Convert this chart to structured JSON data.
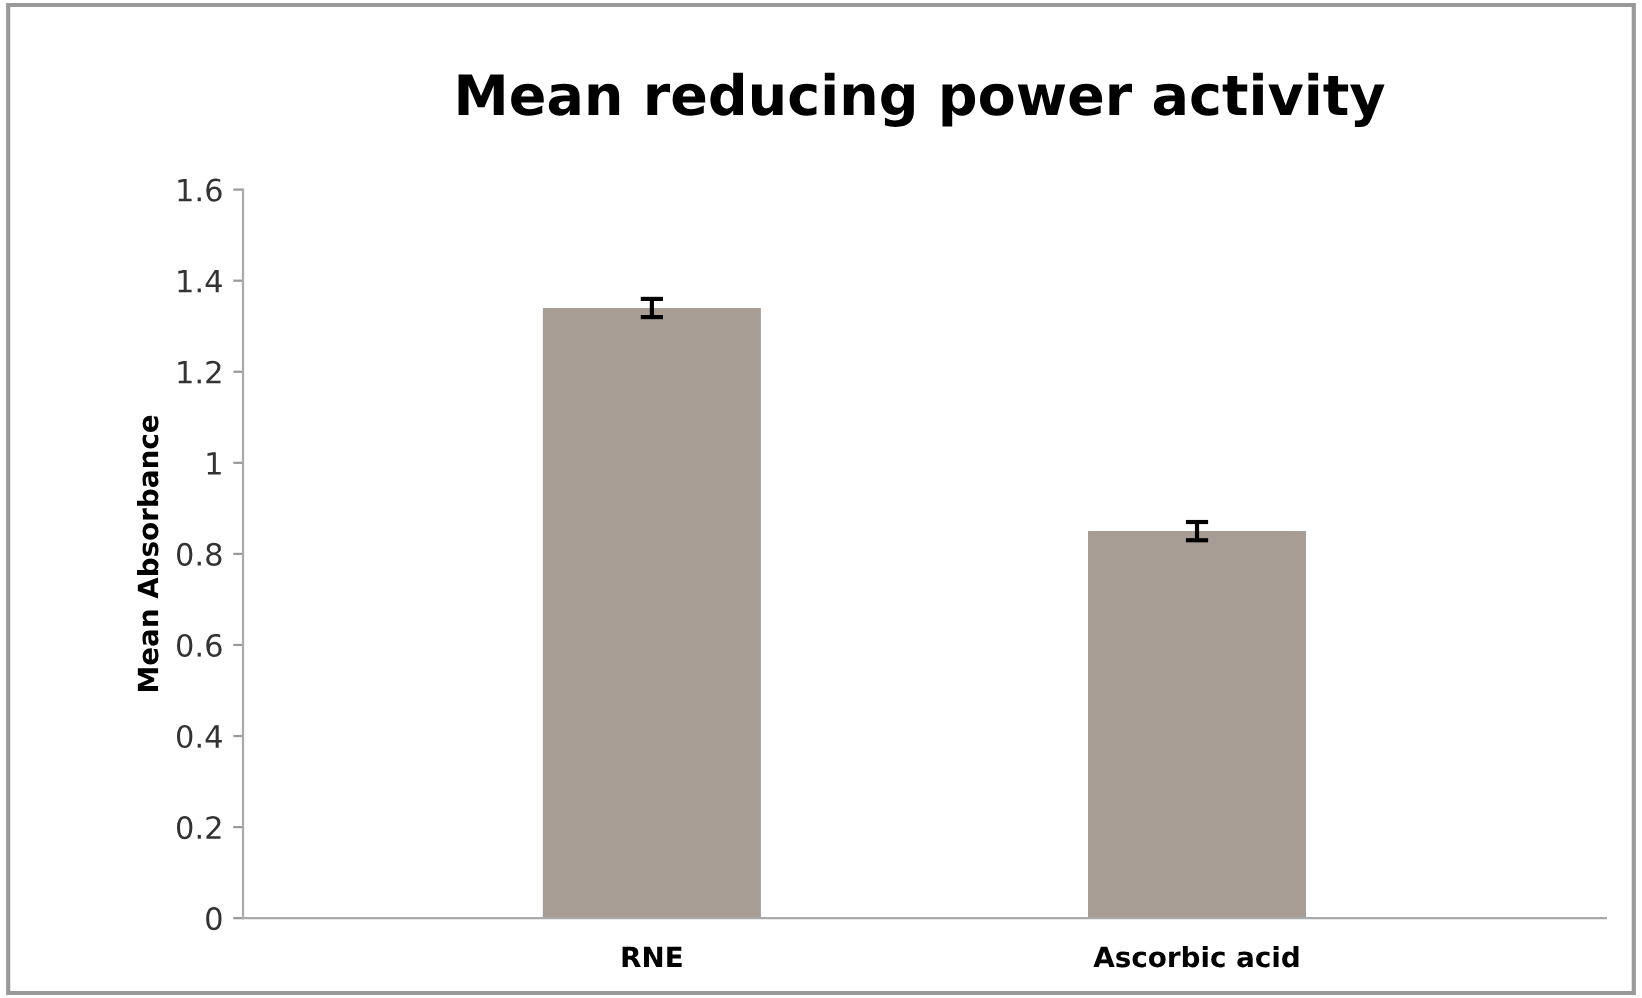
{
  "chart_data": {
    "type": "bar",
    "title": "Mean reducing power activity",
    "ylabel": "Mean Absorbance",
    "categories": [
      "RNE",
      "Ascorbic acid"
    ],
    "values": [
      1.34,
      0.85
    ],
    "errors": [
      0.02,
      0.02
    ],
    "color": "#a89d95",
    "ylim": [
      0,
      1.6
    ],
    "yticks": [
      0,
      0.2,
      0.4,
      0.6,
      0.8,
      1,
      1.2,
      1.4,
      1.6
    ],
    "grid": false,
    "legend": false
  }
}
